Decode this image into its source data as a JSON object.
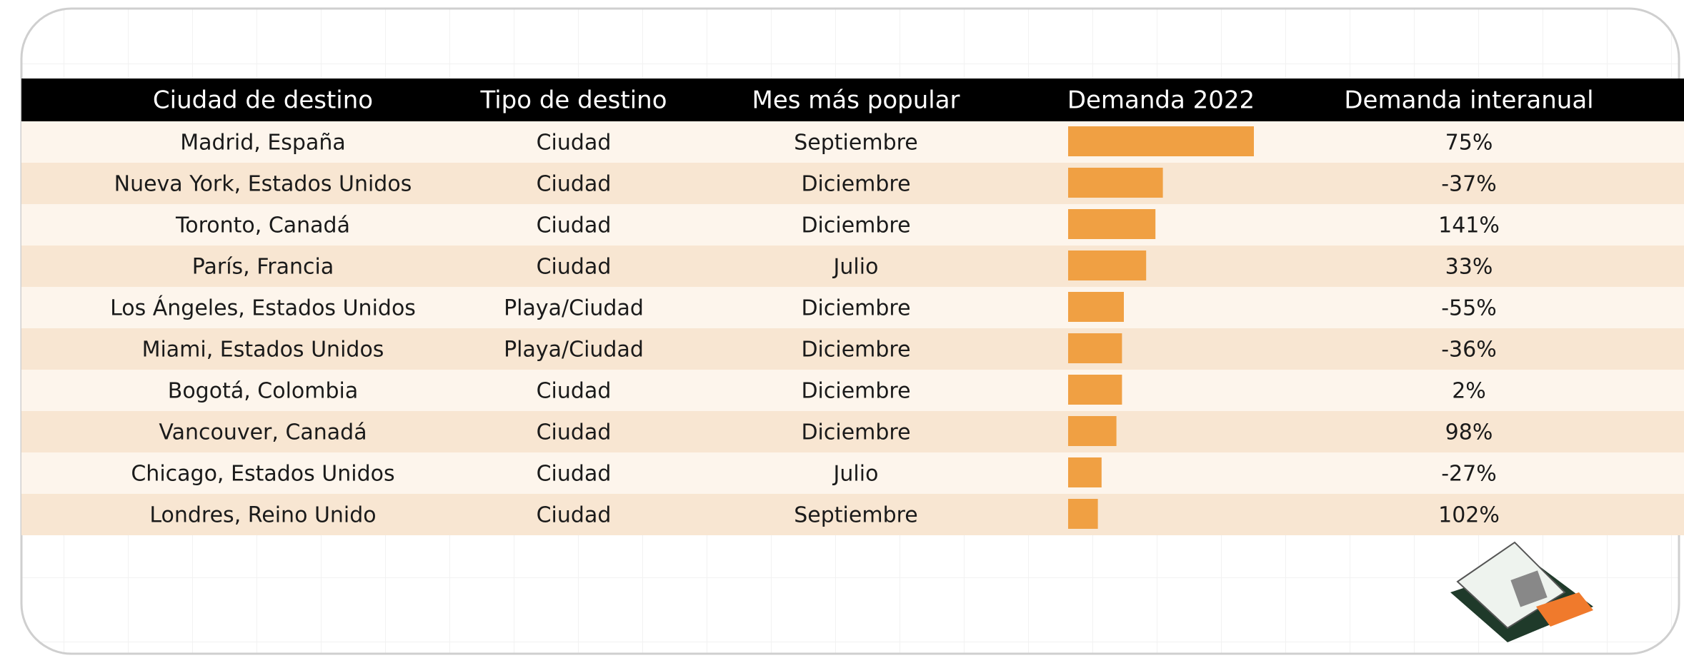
{
  "table": {
    "headers": [
      "Ciudad de destino",
      "Tipo de destino",
      "Mes más popular",
      "Demanda 2022",
      "Demanda interanual"
    ],
    "rows": [
      [
        "Madrid, España",
        "Ciudad",
        "Septiembre",
        "75%"
      ],
      [
        "Nueva York, Estados Unidos",
        "Ciudad",
        "Diciembre",
        "-37%"
      ],
      [
        "Toronto, Canadá",
        "Ciudad",
        "Diciembre",
        "141%"
      ],
      [
        "París, Francia",
        "Ciudad",
        "Julio",
        "33%"
      ],
      [
        "Los Ángeles, Estados Unidos",
        "Playa/Ciudad",
        "Diciembre",
        "-55%"
      ],
      [
        "Miami, Estados Unidos",
        "Playa/Ciudad",
        "Diciembre",
        "-36%"
      ],
      [
        "Bogotá, Colombia",
        "Ciudad",
        "Diciembre",
        "2%"
      ],
      [
        "Vancouver, Canadá",
        "Ciudad",
        "Diciembre",
        "98%"
      ],
      [
        "Chicago, Estados Unidos",
        "Ciudad",
        "Julio",
        "-27%"
      ],
      [
        "Londres, Reino Unido",
        "Ciudad",
        "Septiembre",
        "102%"
      ]
    ],
    "demand_2022": [
      100,
      51,
      47,
      42,
      30,
      29,
      29,
      26,
      18,
      16
    ],
    "bar_color": "#f0a043"
  }
}
